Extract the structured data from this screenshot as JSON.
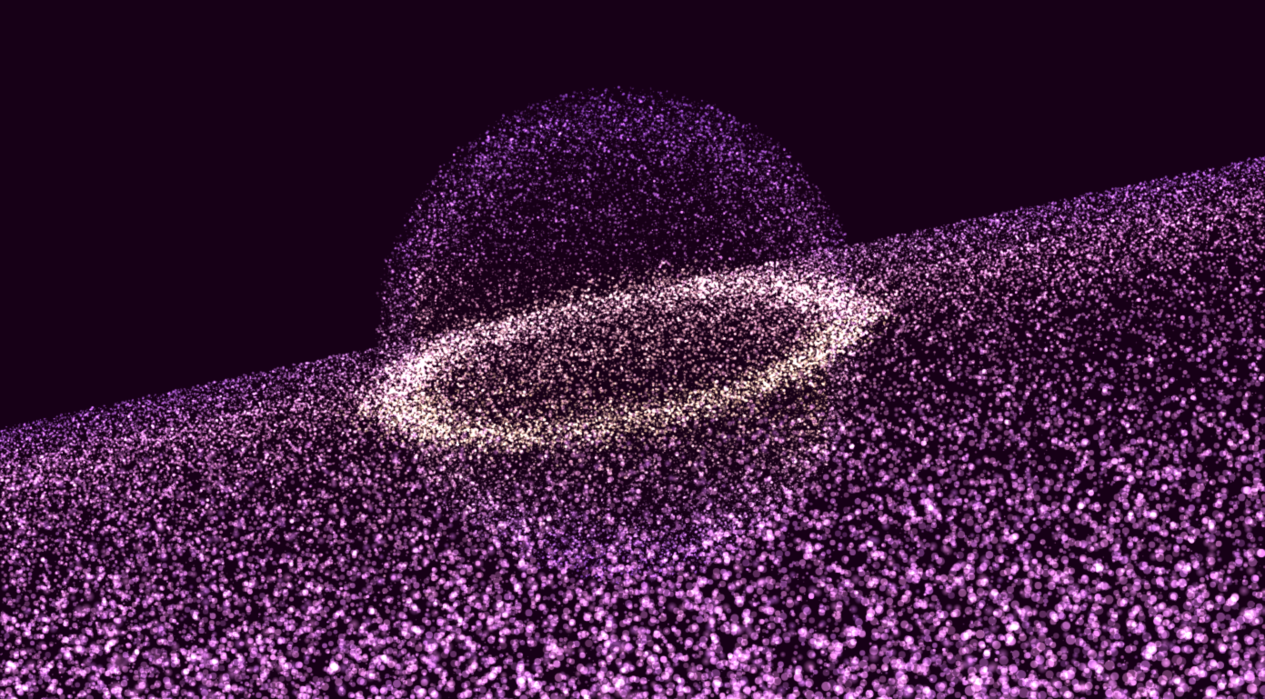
{
  "scene": {
    "background_color": "#170017",
    "palette": {
      "violet": "#a45cf0",
      "pink": "#ee9ae0",
      "gold": "#ffdca0",
      "white": "#fff2e6"
    },
    "sphere": {
      "particle_count": 26000
    },
    "ribbon": {
      "particle_count": 40000
    },
    "foreground_bokeh": {
      "particle_count": 2200
    }
  }
}
